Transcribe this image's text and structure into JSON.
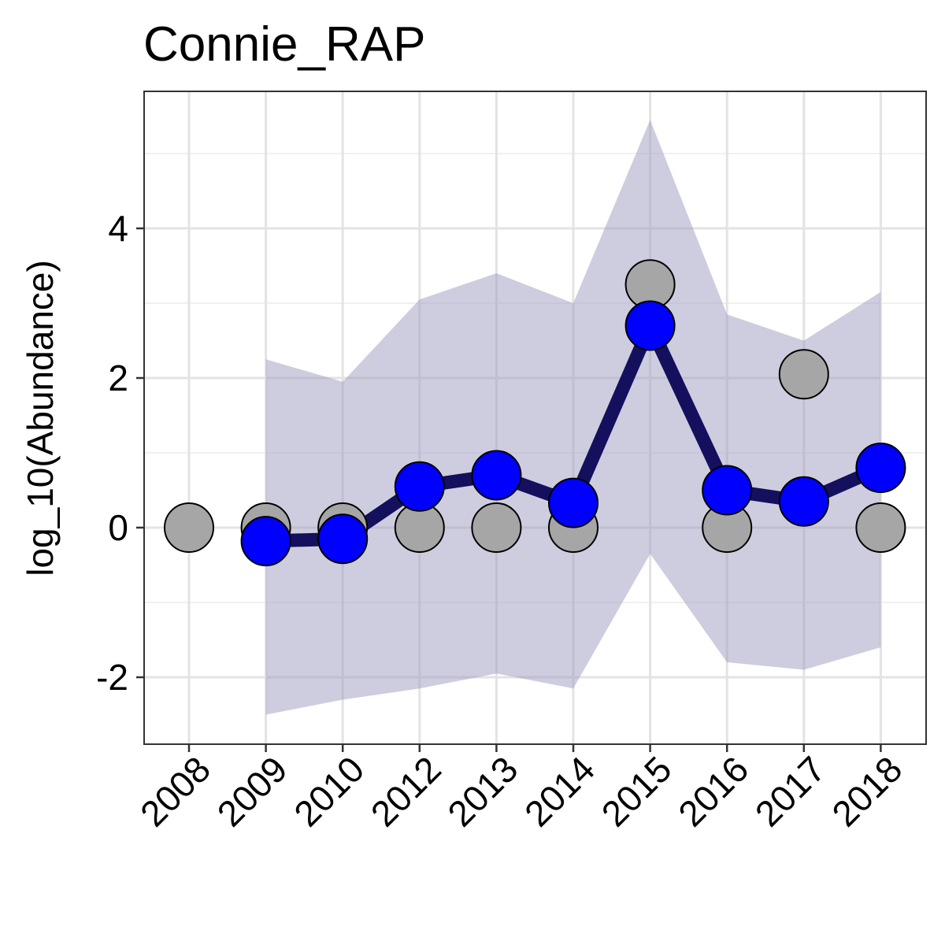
{
  "chart_data": {
    "type": "line",
    "title": "Connie_RAP",
    "xlabel": "",
    "ylabel": "log_10(Abundance)",
    "categories": [
      "2008",
      "2009",
      "2010",
      "2012",
      "2013",
      "2014",
      "2015",
      "2016",
      "2017",
      "2018"
    ],
    "y_ticks": [
      "-2",
      "0",
      "2",
      "4"
    ],
    "ylim": [
      -2.8,
      5.9
    ],
    "grid": true,
    "series": [
      {
        "role": "observed",
        "values": [
          0.0,
          0.0,
          0.0,
          0.0,
          0.0,
          0.0,
          3.25,
          0.0,
          2.05,
          0.0
        ],
        "color": "#a6a6a6"
      },
      {
        "role": "estimate",
        "values": [
          null,
          -0.18,
          -0.15,
          0.55,
          0.7,
          0.33,
          2.7,
          0.5,
          0.35,
          0.8
        ],
        "color": "#0000ff",
        "line_color": "#14105e",
        "ribbon_lower": [
          null,
          -2.5,
          -2.3,
          -2.15,
          -1.95,
          -2.15,
          -0.35,
          -1.8,
          -1.9,
          -1.6
        ],
        "ribbon_upper": [
          null,
          2.25,
          1.95,
          3.05,
          3.4,
          3.0,
          5.45,
          2.85,
          2.5,
          3.15
        ],
        "ribbon_color": "#9d9cc0"
      }
    ]
  }
}
